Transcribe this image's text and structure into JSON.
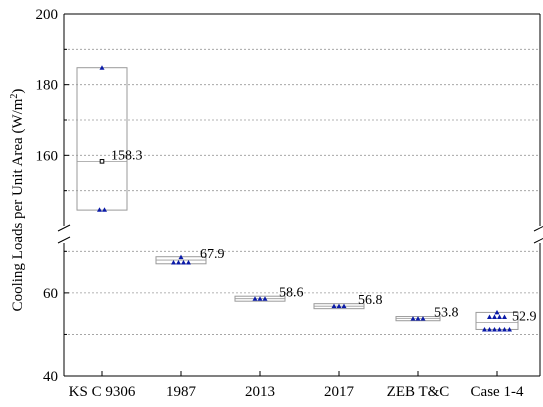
{
  "chart_data": {
    "type": "box",
    "title": "",
    "xlabel": "",
    "ylabel": "Cooling Loads per Unit Area (W/m²)",
    "ylabel_base": "Cooling Loads per Unit Area (W/m",
    "ylabel_sup": "2",
    "ylabel_end": ")",
    "y_axis_break": true,
    "upper_segment": {
      "ylim": [
        140,
        200
      ],
      "ticks": [
        160,
        180,
        200
      ]
    },
    "lower_segment": {
      "ylim": [
        40,
        72
      ],
      "ticks": [
        40,
        60
      ]
    },
    "grid": "dotted horizontal",
    "categories": [
      "KS C 9306",
      "1987",
      "2013",
      "2017",
      "ZEB T&C",
      "Case 1-4"
    ],
    "boxes": [
      {
        "category": "KS C 9306",
        "q1": 144.5,
        "q3": 184.8,
        "mean": 158.3,
        "mean_label": "158.3",
        "points": [
          184.8,
          144.6,
          144.6
        ]
      },
      {
        "category": "1987",
        "q1": 67.0,
        "q3": 68.7,
        "mean": 67.9,
        "mean_label": "67.9",
        "points": [
          68.6,
          67.3,
          67.3,
          67.3,
          67.3
        ]
      },
      {
        "category": "2013",
        "q1": 58.0,
        "q3": 59.2,
        "mean": 58.6,
        "mean_label": "58.6",
        "points": [
          58.6,
          58.6,
          58.6
        ]
      },
      {
        "category": "2017",
        "q1": 56.2,
        "q3": 57.4,
        "mean": 56.8,
        "mean_label": "56.8",
        "points": [
          56.8,
          56.8,
          56.8
        ]
      },
      {
        "category": "ZEB T&C",
        "q1": 53.3,
        "q3": 54.3,
        "mean": 53.8,
        "mean_label": "53.8",
        "points": [
          53.8,
          53.8,
          53.8
        ]
      },
      {
        "category": "Case 1-4",
        "q1": 51.2,
        "q3": 55.3,
        "mean": 52.9,
        "mean_label": "52.9",
        "points": [
          55.3,
          54.2,
          54.2,
          54.2,
          54.2,
          51.2,
          51.2,
          51.2,
          51.2,
          51.2,
          51.2
        ]
      }
    ],
    "colors": {
      "points": "#0a1aa8",
      "box": "#9a9a9a",
      "axis": "#000000",
      "grid": "#9a9a9a"
    }
  }
}
